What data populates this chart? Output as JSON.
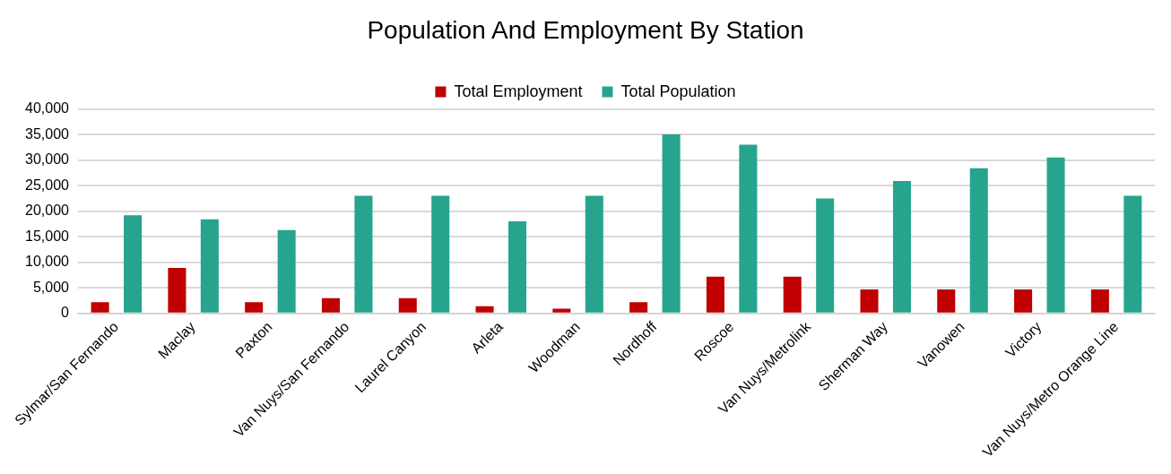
{
  "chart_data": {
    "type": "bar",
    "title": "Population And Employment By Station",
    "categories": [
      "Sylmar/San Fernando",
      "Maclay",
      "Paxton",
      "Van Nuys/San Fernando",
      "Laurel Canyon",
      "Arleta",
      "Woodman",
      "Nordhoff",
      "Roscoe",
      "Van Nuys/Metrolink",
      "Sherman Way",
      "Vanowen",
      "Victory",
      "Van Nuys/Metro Orange Line"
    ],
    "series": [
      {
        "name": "Total Employment",
        "color": "#c00000",
        "values": [
          2200,
          8900,
          2200,
          3000,
          3000,
          1400,
          900,
          2200,
          7200,
          7200,
          4700,
          4700,
          4700,
          4700
        ]
      },
      {
        "name": "Total Population",
        "color": "#26a48e",
        "values": [
          19200,
          18400,
          16300,
          23000,
          23000,
          18000,
          23000,
          35000,
          33000,
          22500,
          25900,
          28400,
          30500,
          23000
        ]
      }
    ],
    "ylim": [
      0,
      40000
    ],
    "yticks": [
      {
        "value": 0,
        "label": "0"
      },
      {
        "value": 5000,
        "label": "5,000"
      },
      {
        "value": 10000,
        "label": "10,000"
      },
      {
        "value": 15000,
        "label": "15,000"
      },
      {
        "value": 20000,
        "label": "20,000"
      },
      {
        "value": 25000,
        "label": "25,000"
      },
      {
        "value": 30000,
        "label": "30,000"
      },
      {
        "value": 35000,
        "label": "35,000"
      },
      {
        "value": 40000,
        "label": "40,000"
      }
    ],
    "grid": "y",
    "legend": "top"
  }
}
